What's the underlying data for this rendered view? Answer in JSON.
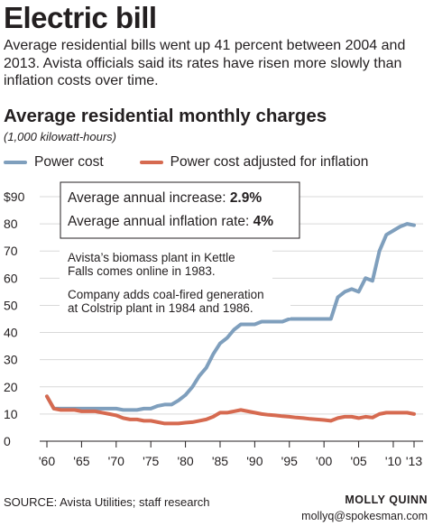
{
  "headline": "Electric bill",
  "intro": "Average residential bills went up 41 percent between 2004 and 2013. Avista officials said its rates have risen more slowly than inflation costs over time.",
  "chart_data": {
    "type": "line",
    "title": "Average residential monthly charges",
    "subtitle": "(1,000 kilowatt-hours)",
    "xlim": [
      1960,
      2013
    ],
    "ylim": [
      0,
      90
    ],
    "grid": true,
    "yticks": [
      0,
      10,
      20,
      30,
      40,
      50,
      60,
      70,
      80,
      90
    ],
    "ytick_labels": [
      "0",
      "10",
      "20",
      "30",
      "40",
      "50",
      "60",
      "70",
      "80",
      "$90"
    ],
    "xticks": [
      1960,
      1965,
      1970,
      1975,
      1980,
      1985,
      1990,
      1995,
      2000,
      2005,
      2010,
      2013
    ],
    "xtick_labels": [
      "'60",
      "'65",
      "'70",
      "'75",
      "'80",
      "'85",
      "'90",
      "'95",
      "'00",
      "'05",
      "'10",
      "'13"
    ],
    "legend_position": "top",
    "series": [
      {
        "name": "Power cost",
        "color": "#7f9fbd",
        "points": [
          [
            1960,
            16.5
          ],
          [
            1961,
            12
          ],
          [
            1962,
            12
          ],
          [
            1963,
            12
          ],
          [
            1964,
            12
          ],
          [
            1965,
            12
          ],
          [
            1966,
            12
          ],
          [
            1967,
            12
          ],
          [
            1968,
            12
          ],
          [
            1969,
            12
          ],
          [
            1970,
            12
          ],
          [
            1971,
            11.5
          ],
          [
            1972,
            11.5
          ],
          [
            1973,
            11.5
          ],
          [
            1974,
            12
          ],
          [
            1975,
            12
          ],
          [
            1976,
            13
          ],
          [
            1977,
            13.5
          ],
          [
            1978,
            13.5
          ],
          [
            1979,
            15
          ],
          [
            1980,
            17
          ],
          [
            1981,
            20
          ],
          [
            1982,
            24
          ],
          [
            1983,
            27
          ],
          [
            1984,
            32
          ],
          [
            1985,
            36
          ],
          [
            1986,
            38
          ],
          [
            1987,
            41
          ],
          [
            1988,
            43
          ],
          [
            1989,
            43
          ],
          [
            1990,
            43
          ],
          [
            1991,
            44
          ],
          [
            1992,
            44
          ],
          [
            1993,
            44
          ],
          [
            1994,
            44
          ],
          [
            1995,
            45
          ],
          [
            1996,
            45
          ],
          [
            1997,
            45
          ],
          [
            1998,
            45
          ],
          [
            1999,
            45
          ],
          [
            2000,
            45
          ],
          [
            2001,
            45
          ],
          [
            2002,
            53
          ],
          [
            2003,
            55
          ],
          [
            2004,
            56
          ],
          [
            2005,
            55
          ],
          [
            2006,
            60
          ],
          [
            2007,
            59
          ],
          [
            2008,
            70
          ],
          [
            2009,
            76
          ],
          [
            2010,
            77.5
          ],
          [
            2011,
            79
          ],
          [
            2012,
            80
          ],
          [
            2013,
            79.5
          ]
        ]
      },
      {
        "name": "Power cost adjusted for inflation",
        "color": "#d66a50",
        "points": [
          [
            1960,
            16.5
          ],
          [
            1961,
            12
          ],
          [
            1962,
            11.5
          ],
          [
            1963,
            11.5
          ],
          [
            1964,
            11.5
          ],
          [
            1965,
            11
          ],
          [
            1966,
            11
          ],
          [
            1967,
            11
          ],
          [
            1968,
            10.5
          ],
          [
            1969,
            10
          ],
          [
            1970,
            9.5
          ],
          [
            1971,
            8.5
          ],
          [
            1972,
            8
          ],
          [
            1973,
            8
          ],
          [
            1974,
            7.5
          ],
          [
            1975,
            7.5
          ],
          [
            1976,
            7
          ],
          [
            1977,
            6.5
          ],
          [
            1978,
            6.5
          ],
          [
            1979,
            6.5
          ],
          [
            1980,
            6.8
          ],
          [
            1981,
            7
          ],
          [
            1982,
            7.5
          ],
          [
            1983,
            8
          ],
          [
            1984,
            9
          ],
          [
            1985,
            10.5
          ],
          [
            1986,
            10.5
          ],
          [
            1987,
            11
          ],
          [
            1988,
            11.5
          ],
          [
            1989,
            11
          ],
          [
            1990,
            10.5
          ],
          [
            1991,
            10
          ],
          [
            1992,
            9.7
          ],
          [
            1993,
            9.5
          ],
          [
            1994,
            9.2
          ],
          [
            1995,
            9
          ],
          [
            1996,
            8.7
          ],
          [
            1997,
            8.5
          ],
          [
            1998,
            8.2
          ],
          [
            1999,
            8
          ],
          [
            2000,
            7.8
          ],
          [
            2001,
            7.5
          ],
          [
            2002,
            8.5
          ],
          [
            2003,
            9
          ],
          [
            2004,
            9
          ],
          [
            2005,
            8.5
          ],
          [
            2006,
            9
          ],
          [
            2007,
            8.7
          ],
          [
            2008,
            10
          ],
          [
            2009,
            10.5
          ],
          [
            2010,
            10.5
          ],
          [
            2011,
            10.5
          ],
          [
            2012,
            10.5
          ],
          [
            2013,
            10
          ]
        ]
      }
    ],
    "annotation_box": {
      "line1_label": "Average annual increase: ",
      "line1_value": "2.9%",
      "line2_label": "Average annual inflation rate: ",
      "line2_value": "4%"
    },
    "annotations": [
      [
        "Avista’s biomass plant in Kettle",
        "Falls comes online in 1983."
      ],
      [
        "Company adds coal-fired generation",
        "at Colstrip plant in 1984 and 1986."
      ]
    ]
  },
  "footer": {
    "source": "SOURCE: Avista Utilities; staff research",
    "credit_name": "MOLLY QUINN",
    "credit_email": "mollyq@spokesman.com"
  }
}
